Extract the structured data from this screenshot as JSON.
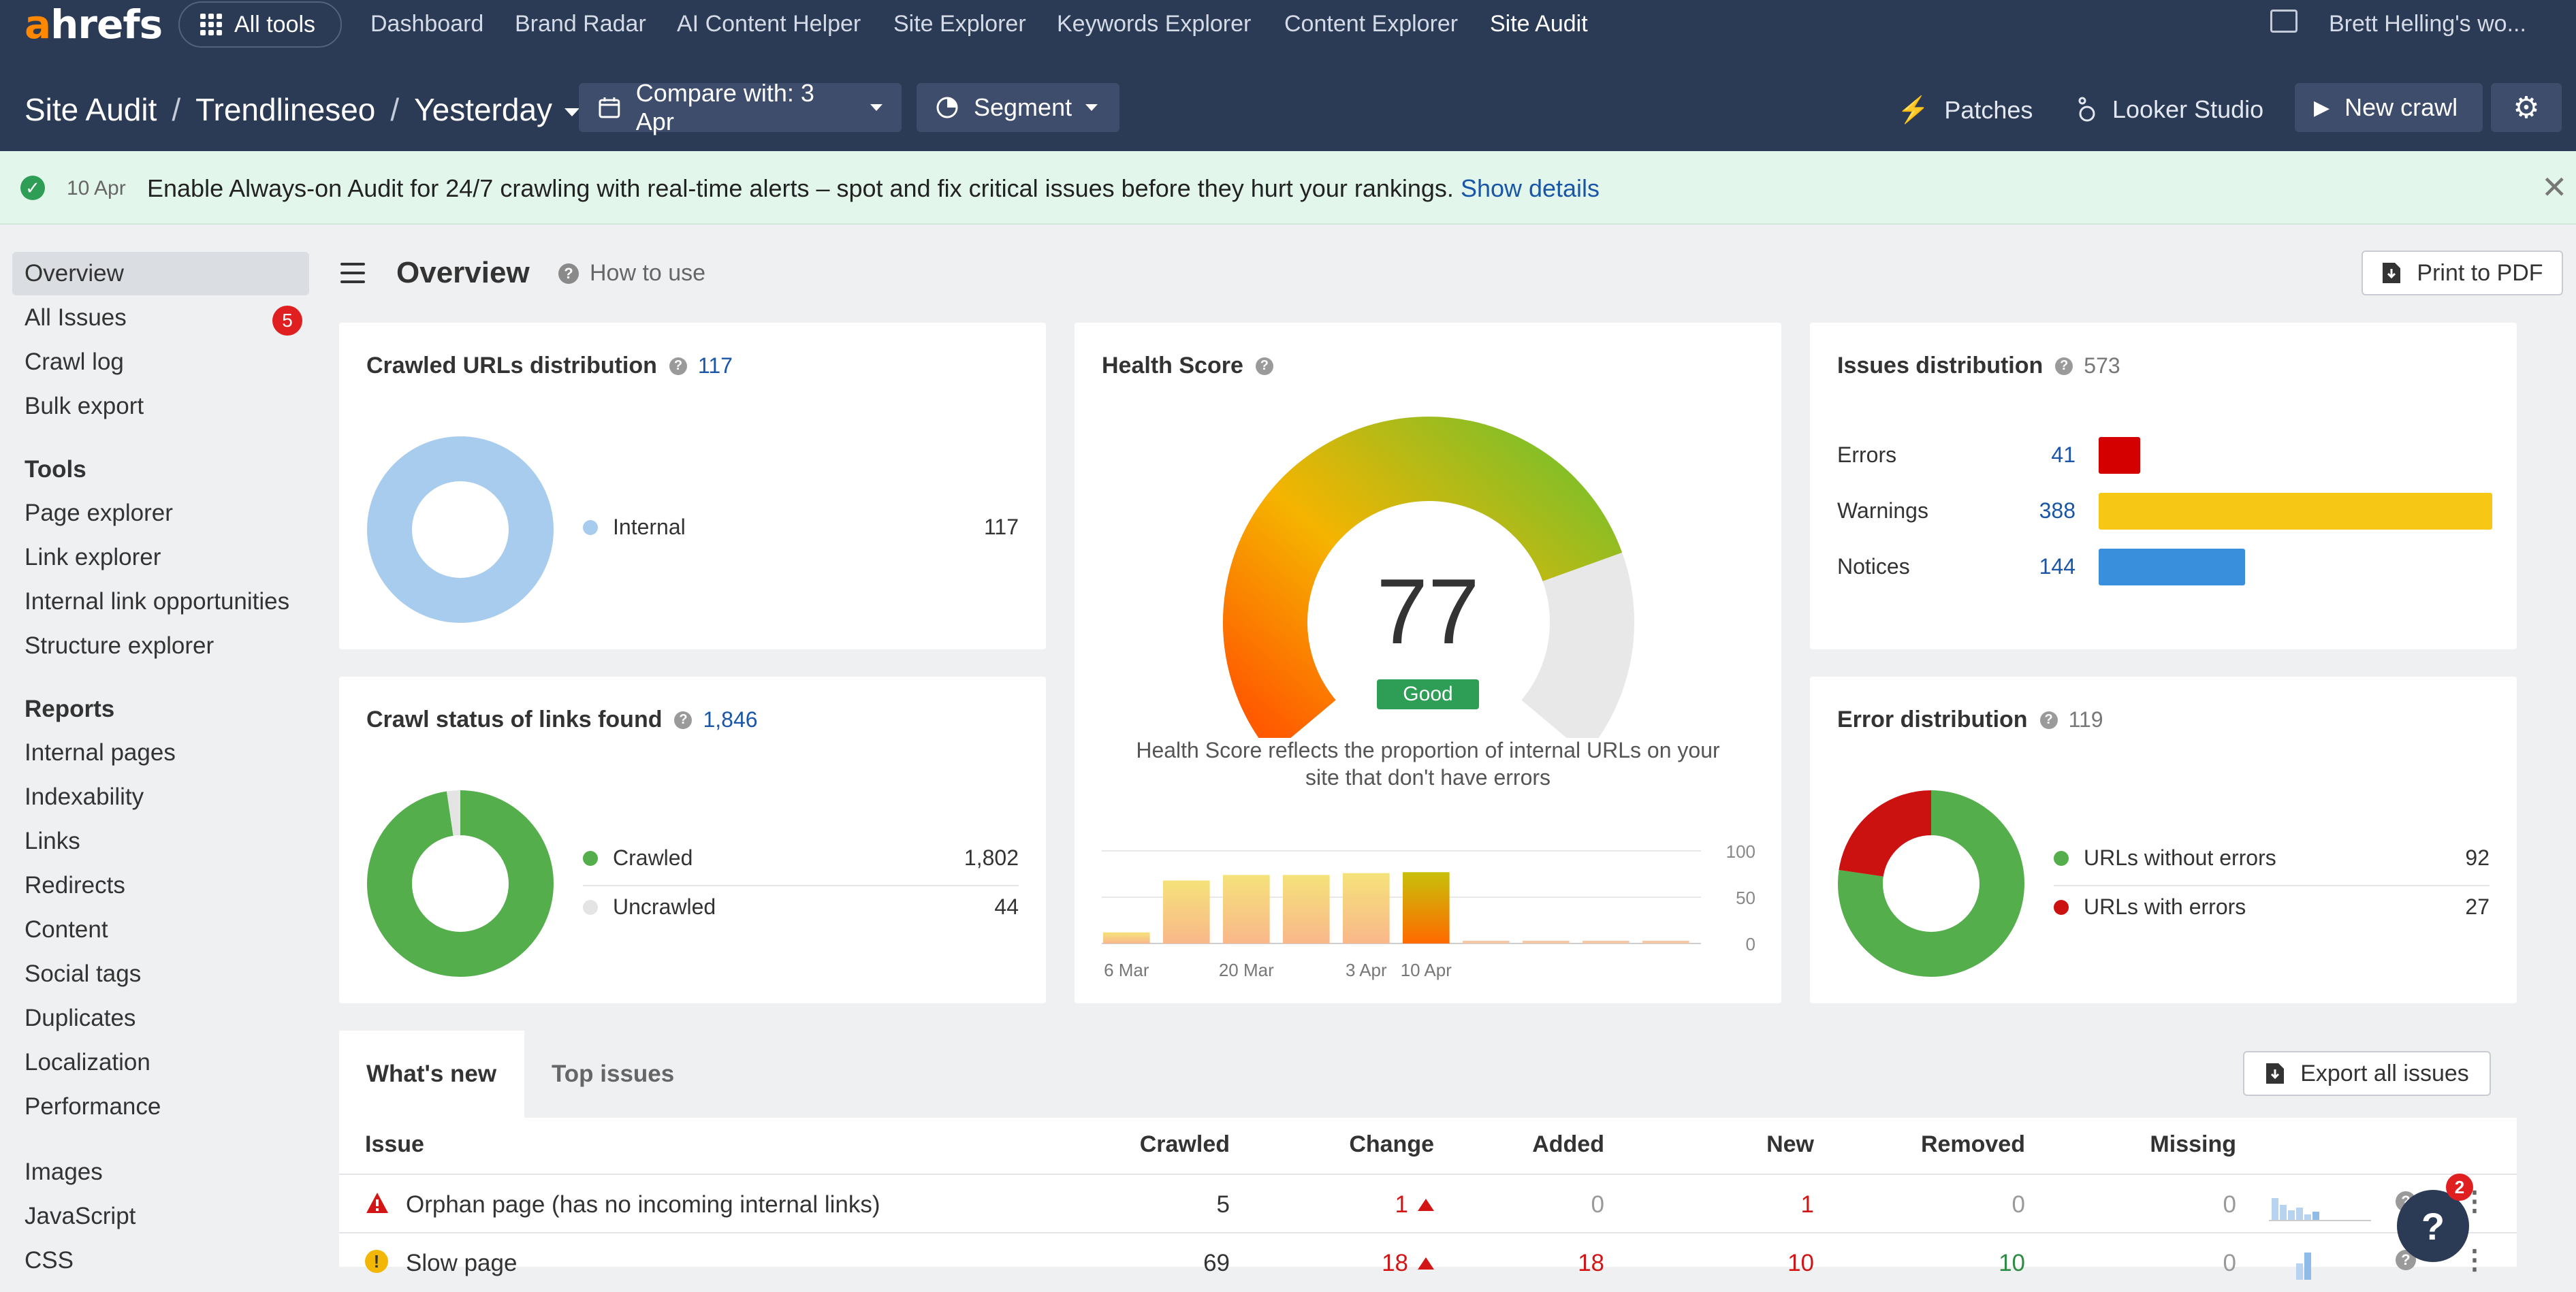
{
  "topnav": {
    "logo_a": "a",
    "logo_rest": "hrefs",
    "all_tools": "All tools",
    "links": [
      "Dashboard",
      "Brand Radar",
      "AI Content Helper",
      "Site Explorer",
      "Keywords Explorer",
      "Content Explorer",
      "Site Audit"
    ],
    "user": "Brett Helling's wo..."
  },
  "subnav": {
    "crumb_1": "Site Audit",
    "crumb_2": "Trendlineseo",
    "crumb_3": "Yesterday",
    "compare": "Compare with: 3 Apr",
    "segment": "Segment",
    "patches": "Patches",
    "looker": "Looker Studio",
    "new_crawl": "New crawl"
  },
  "banner": {
    "date": "10 Apr",
    "message": "Enable Always-on Audit for 24/7 crawling with real-time alerts – spot and fix critical issues before they hurt your rankings.",
    "link": "Show details"
  },
  "sidebar": {
    "top": [
      "Overview",
      "All Issues",
      "Crawl log",
      "Bulk export"
    ],
    "issues_badge": "5",
    "tools_head": "Tools",
    "tools": [
      "Page explorer",
      "Link explorer",
      "Internal link opportunities",
      "Structure explorer"
    ],
    "reports_head": "Reports",
    "reports": [
      "Internal pages",
      "Indexability",
      "Links",
      "Redirects",
      "Content",
      "Social tags",
      "Duplicates",
      "Localization",
      "Performance"
    ],
    "more": [
      "Images",
      "JavaScript",
      "CSS"
    ]
  },
  "overview": {
    "title": "Overview",
    "how_to": "How to use",
    "print": "Print to PDF"
  },
  "crawled_urls": {
    "title": "Crawled URLs distribution",
    "total": "117",
    "legend": [
      {
        "label": "Internal",
        "value": "117",
        "color": "#a8ccee"
      }
    ]
  },
  "crawl_status": {
    "title": "Crawl status of links found",
    "total": "1,846",
    "legend": [
      {
        "label": "Crawled",
        "value": "1,802",
        "color": "#55ae4c",
        "num": 1802
      },
      {
        "label": "Uncrawled",
        "value": "44",
        "color": "#e4e4e4",
        "num": 44
      }
    ]
  },
  "health": {
    "title": "Health Score",
    "score": "77",
    "score_value": 77,
    "rating": "Good",
    "desc_1": "Health Score reflects the proportion of internal URLs on your",
    "desc_2": "site that don't have errors",
    "y_ticks": [
      "100",
      "50",
      "0"
    ],
    "x_ticks": [
      "6 Mar",
      "20 Mar",
      "3 Apr",
      "10 Apr"
    ]
  },
  "chart_data": {
    "type": "bar",
    "title": "Health Score",
    "categories": [
      "6 Mar",
      "",
      "20 Mar",
      "",
      "3 Apr",
      "10 Apr",
      "",
      "",
      "",
      ""
    ],
    "values": [
      12,
      68,
      74,
      74,
      76,
      77,
      0,
      0,
      0,
      0
    ],
    "ylim": [
      0,
      100
    ],
    "yticks": [
      0,
      50,
      100
    ],
    "grid": true
  },
  "issues_dist": {
    "title": "Issues distribution",
    "total": "573",
    "rows": [
      {
        "label": "Errors",
        "value": "41",
        "num": 41,
        "color": "#d40000"
      },
      {
        "label": "Warnings",
        "value": "388",
        "num": 388,
        "color": "#f7c716"
      },
      {
        "label": "Notices",
        "value": "144",
        "num": 144,
        "color": "#3a8fdd"
      }
    ]
  },
  "error_dist": {
    "title": "Error distribution",
    "total": "119",
    "legend": [
      {
        "label": "URLs without errors",
        "value": "92",
        "num": 92,
        "color": "#55ae4c"
      },
      {
        "label": "URLs with errors",
        "value": "27",
        "num": 27,
        "color": "#cc1111"
      }
    ]
  },
  "tabs": {
    "whats_new": "What's new",
    "top_issues": "Top issues",
    "export": "Export all issues"
  },
  "table": {
    "headers": {
      "issue": "Issue",
      "crawled": "Crawled",
      "change": "Change",
      "added": "Added",
      "new": "New",
      "removed": "Removed",
      "missing": "Missing"
    },
    "rows": [
      {
        "issue": "Orphan page (has no incoming internal links)",
        "crawled": "5",
        "change": "1",
        "added": "0",
        "new": "1",
        "removed": "0",
        "missing": "0",
        "severity": "error"
      },
      {
        "issue": "Slow page",
        "crawled": "69",
        "change": "18",
        "added": "18",
        "new": "10",
        "removed": "10",
        "missing": "0",
        "severity": "warning"
      }
    ]
  },
  "help": {
    "badge": "2",
    "label": "?"
  }
}
